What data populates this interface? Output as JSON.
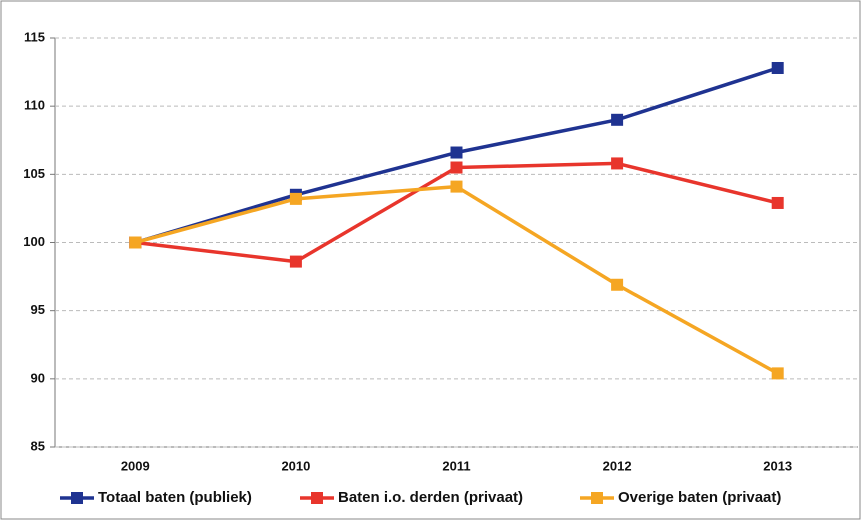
{
  "chart_data": {
    "type": "line",
    "categories": [
      "2009",
      "2010",
      "2011",
      "2012",
      "2013"
    ],
    "series": [
      {
        "name": "Totaal baten (publiek)",
        "color": "#1f3391",
        "values": [
          100,
          103.5,
          106.6,
          109,
          112.8
        ]
      },
      {
        "name": "Baten i.o. derden (privaat)",
        "color": "#e8352c",
        "values": [
          100,
          98.6,
          105.5,
          105.8,
          102.9
        ]
      },
      {
        "name": "Overige baten (privaat)",
        "color": "#f5a623",
        "values": [
          100,
          103.2,
          104.1,
          96.9,
          90.4
        ]
      }
    ],
    "ylim": [
      85,
      115
    ],
    "yticks": [
      85,
      90,
      95,
      100,
      105,
      110,
      115
    ],
    "grid": true,
    "legend": "bottom"
  }
}
